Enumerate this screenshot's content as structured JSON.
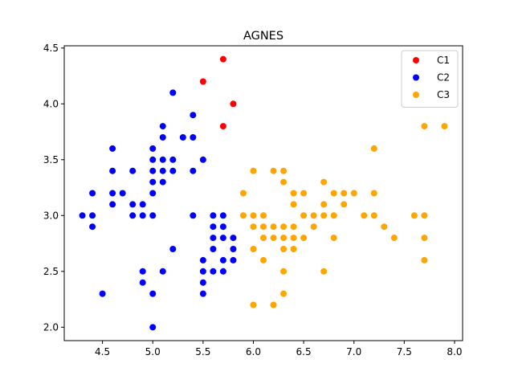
{
  "chart_data": {
    "type": "scatter",
    "title": "AGNES",
    "xlabel": "",
    "ylabel": "",
    "xlim": [
      4.12,
      8.08
    ],
    "ylim": [
      1.88,
      4.52
    ],
    "x_ticks": [
      4.5,
      5.0,
      5.5,
      6.0,
      6.5,
      7.0,
      7.5,
      8.0
    ],
    "x_tick_labels": [
      "4.5",
      "5.0",
      "5.5",
      "6.0",
      "6.5",
      "7.0",
      "7.5",
      "8.0"
    ],
    "y_ticks": [
      2.0,
      2.5,
      3.0,
      3.5,
      4.0,
      4.5
    ],
    "y_tick_labels": [
      "2.0",
      "2.5",
      "3.0",
      "3.5",
      "4.0",
      "4.5"
    ],
    "grid": false,
    "legend_position": "top-right",
    "series": [
      {
        "name": "C1",
        "color": "#ff0000",
        "points": [
          [
            5.7,
            4.4
          ],
          [
            5.5,
            4.2
          ],
          [
            5.8,
            4.0
          ],
          [
            5.7,
            3.8
          ]
        ]
      },
      {
        "name": "C2",
        "color": "#0000ff",
        "points": [
          [
            4.3,
            3.0
          ],
          [
            4.4,
            3.2
          ],
          [
            4.4,
            3.0
          ],
          [
            4.4,
            2.9
          ],
          [
            4.5,
            2.3
          ],
          [
            4.6,
            3.6
          ],
          [
            4.6,
            3.4
          ],
          [
            4.6,
            3.2
          ],
          [
            4.6,
            3.1
          ],
          [
            4.7,
            3.2
          ],
          [
            4.8,
            3.4
          ],
          [
            4.8,
            3.1
          ],
          [
            4.8,
            3.0
          ],
          [
            4.9,
            3.1
          ],
          [
            4.9,
            3.0
          ],
          [
            4.9,
            2.5
          ],
          [
            4.9,
            2.4
          ],
          [
            5.0,
            3.6
          ],
          [
            5.0,
            3.5
          ],
          [
            5.0,
            3.4
          ],
          [
            5.0,
            3.3
          ],
          [
            5.0,
            3.2
          ],
          [
            5.0,
            3.0
          ],
          [
            5.0,
            2.3
          ],
          [
            5.0,
            2.0
          ],
          [
            5.1,
            3.8
          ],
          [
            5.1,
            3.7
          ],
          [
            5.1,
            3.5
          ],
          [
            5.1,
            3.4
          ],
          [
            5.1,
            3.3
          ],
          [
            5.1,
            2.5
          ],
          [
            5.2,
            4.1
          ],
          [
            5.2,
            3.5
          ],
          [
            5.2,
            3.4
          ],
          [
            5.2,
            2.7
          ],
          [
            5.3,
            3.7
          ],
          [
            5.4,
            3.9
          ],
          [
            5.4,
            3.7
          ],
          [
            5.4,
            3.4
          ],
          [
            5.4,
            3.0
          ],
          [
            5.5,
            3.5
          ],
          [
            5.5,
            2.6
          ],
          [
            5.5,
            2.5
          ],
          [
            5.5,
            2.4
          ],
          [
            5.5,
            2.3
          ],
          [
            5.6,
            3.0
          ],
          [
            5.6,
            2.9
          ],
          [
            5.6,
            2.8
          ],
          [
            5.6,
            2.7
          ],
          [
            5.6,
            2.5
          ],
          [
            5.7,
            3.0
          ],
          [
            5.7,
            2.9
          ],
          [
            5.7,
            2.8
          ],
          [
            5.7,
            2.6
          ],
          [
            5.7,
            2.5
          ],
          [
            5.8,
            2.8
          ],
          [
            5.8,
            2.7
          ],
          [
            5.8,
            2.6
          ]
        ]
      },
      {
        "name": "C3",
        "color": "#ffa500",
        "points": [
          [
            5.9,
            3.2
          ],
          [
            5.9,
            3.0
          ],
          [
            6.0,
            3.4
          ],
          [
            6.0,
            3.0
          ],
          [
            6.0,
            2.9
          ],
          [
            6.0,
            2.7
          ],
          [
            6.0,
            2.2
          ],
          [
            6.1,
            3.0
          ],
          [
            6.1,
            2.9
          ],
          [
            6.1,
            2.8
          ],
          [
            6.1,
            2.6
          ],
          [
            6.2,
            3.4
          ],
          [
            6.2,
            2.9
          ],
          [
            6.2,
            2.8
          ],
          [
            6.2,
            2.2
          ],
          [
            6.3,
            3.4
          ],
          [
            6.3,
            3.3
          ],
          [
            6.3,
            2.9
          ],
          [
            6.3,
            2.8
          ],
          [
            6.3,
            2.7
          ],
          [
            6.3,
            2.5
          ],
          [
            6.3,
            2.3
          ],
          [
            6.4,
            3.2
          ],
          [
            6.4,
            3.1
          ],
          [
            6.4,
            2.9
          ],
          [
            6.4,
            2.8
          ],
          [
            6.4,
            2.7
          ],
          [
            6.5,
            3.2
          ],
          [
            6.5,
            3.0
          ],
          [
            6.5,
            2.8
          ],
          [
            6.6,
            3.0
          ],
          [
            6.6,
            2.9
          ],
          [
            6.7,
            3.3
          ],
          [
            6.7,
            3.1
          ],
          [
            6.7,
            3.0
          ],
          [
            6.7,
            2.5
          ],
          [
            6.8,
            3.2
          ],
          [
            6.8,
            3.0
          ],
          [
            6.8,
            2.8
          ],
          [
            6.9,
            3.2
          ],
          [
            6.9,
            3.1
          ],
          [
            7.0,
            3.2
          ],
          [
            7.1,
            3.0
          ],
          [
            7.2,
            3.6
          ],
          [
            7.2,
            3.2
          ],
          [
            7.2,
            3.0
          ],
          [
            7.3,
            2.9
          ],
          [
            7.4,
            2.8
          ],
          [
            7.6,
            3.0
          ],
          [
            7.7,
            3.8
          ],
          [
            7.7,
            3.0
          ],
          [
            7.7,
            2.8
          ],
          [
            7.7,
            2.6
          ],
          [
            7.9,
            3.8
          ]
        ]
      }
    ]
  }
}
